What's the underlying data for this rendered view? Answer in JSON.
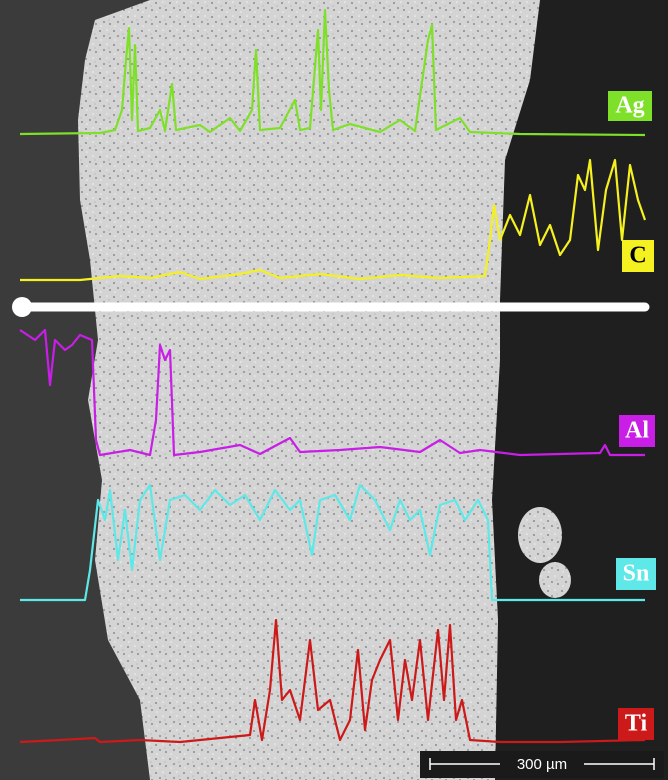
{
  "elements": [
    {
      "symbol": "Ag",
      "color": "#7fe02a",
      "text_color": "#ffffff"
    },
    {
      "symbol": "C",
      "color": "#f5f020",
      "text_color": "#000000"
    },
    {
      "symbol": "Al",
      "color": "#c81ee6",
      "text_color": "#ffffff"
    },
    {
      "symbol": "Sn",
      "color": "#5ee8e8",
      "text_color": "#ffffff"
    },
    {
      "symbol": "Ti",
      "color": "#cc1a1a",
      "text_color": "#ffffff"
    }
  ],
  "scale_bar": "300 µm"
}
